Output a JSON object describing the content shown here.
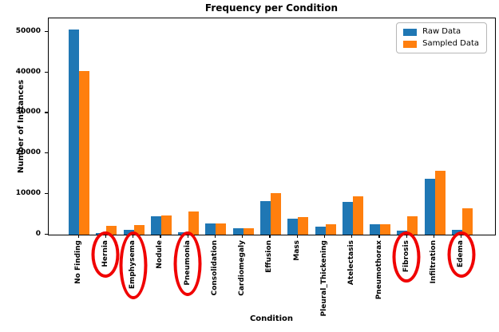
{
  "title": "Frequency per Condition",
  "xlabel": "Condition",
  "ylabel": "Number of Instances",
  "legend": {
    "raw": "Raw Data",
    "sampled": "Sampled Data"
  },
  "colors": {
    "raw": "#1f77b4",
    "sampled": "#ff7f0e",
    "annotation": "#f00100",
    "spine": "#000000"
  },
  "y_ticks": [
    0,
    10000,
    20000,
    30000,
    40000,
    50000
  ],
  "chart_data": {
    "type": "bar",
    "title": "Frequency per Condition",
    "xlabel": "Condition",
    "ylabel": "Number of Instances",
    "ylim": [
      0,
      53400
    ],
    "grid": false,
    "legend_position": "upper right",
    "categories": [
      "No Finding",
      "Hernia",
      "Emphysema",
      "Nodule",
      "Pneumonia",
      "Consolidation",
      "Cardiomegaly",
      "Effusion",
      "Mass",
      "Pleural_Thickening",
      "Atelectasis",
      "Pneumothorax",
      "Fibrosis",
      "Infiltration",
      "Edema"
    ],
    "series": [
      {
        "name": "Raw Data",
        "color": "#1f77b4",
        "values": [
          50800,
          400,
          1200,
          4600,
          650,
          2700,
          1500,
          8300,
          3900,
          1900,
          8100,
          2600,
          1000,
          13800,
          1200
        ]
      },
      {
        "name": "Sampled Data",
        "color": "#ff7f0e",
        "values": [
          40500,
          2200,
          2300,
          4800,
          5700,
          2700,
          1600,
          10300,
          4400,
          2600,
          9400,
          2600,
          4600,
          15800,
          6600
        ]
      }
    ],
    "annotations": {
      "circled_categories": [
        "Hernia",
        "Emphysema",
        "Pneumonia",
        "Fibrosis",
        "Edema"
      ],
      "circle_color": "#f00100",
      "circle_style": "thick red ellipse around x tick label"
    }
  }
}
